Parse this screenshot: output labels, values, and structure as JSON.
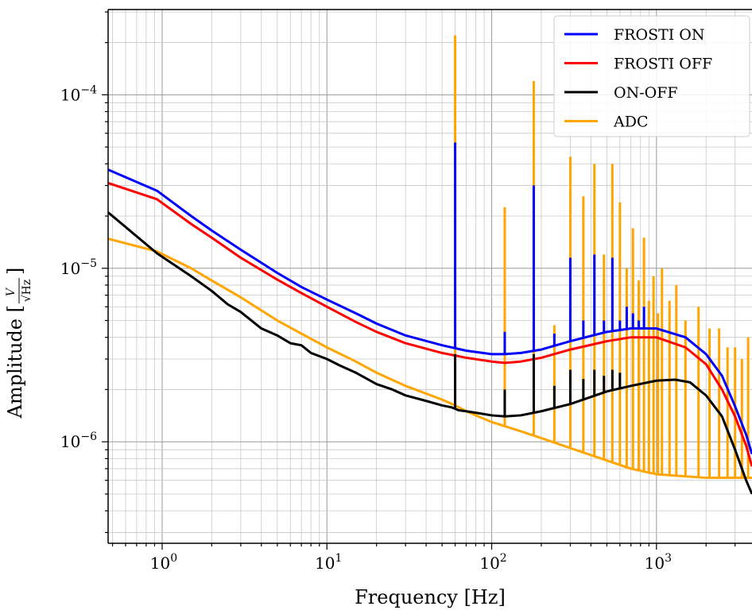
{
  "chart_data": {
    "type": "line",
    "title": "",
    "xlabel": "Frequency [Hz]",
    "ylabel_prefix": "Amplitude [",
    "ylabel_fraction_num": "V",
    "ylabel_fraction_den": "√Hz",
    "ylabel_suffix": "]",
    "x_scale": "log",
    "y_scale": "log",
    "xlim": [
      0.47,
      3800
    ],
    "ylim": [
      2.6e-07,
      0.00031
    ],
    "grid": "major and minor",
    "legend_position": "top-right",
    "x_ticks": [
      {
        "value": 1,
        "base": "10",
        "exp": "0"
      },
      {
        "value": 10,
        "base": "10",
        "exp": "1"
      },
      {
        "value": 100,
        "base": "10",
        "exp": "2"
      },
      {
        "value": 1000,
        "base": "10",
        "exp": "3"
      }
    ],
    "y_ticks": [
      {
        "value": 1e-06,
        "base": "10",
        "exp": "−6"
      },
      {
        "value": 1e-05,
        "base": "10",
        "exp": "−5"
      },
      {
        "value": 0.0001,
        "base": "10",
        "exp": "−4"
      }
    ],
    "series": [
      {
        "name": "FROSTI ON",
        "color": "#0000ff",
        "x": [
          0.47,
          0.93,
          1.5,
          2,
          3,
          5,
          7,
          10,
          15,
          20,
          30,
          50,
          70,
          100,
          120,
          150,
          200,
          300,
          500,
          700,
          1000,
          1500,
          2000,
          2500,
          3000,
          3500,
          3800
        ],
        "y": [
          3.7e-05,
          2.8e-05,
          2e-05,
          1.65e-05,
          1.28e-05,
          9.4e-06,
          7.8e-06,
          6.6e-06,
          5.5e-06,
          4.8e-06,
          4.1e-06,
          3.6e-06,
          3.35e-06,
          3.2e-06,
          3.2e-06,
          3.25e-06,
          3.4e-06,
          3.8e-06,
          4.3e-06,
          4.5e-06,
          4.5e-06,
          4e-06,
          3.2e-06,
          2.4e-06,
          1.6e-06,
          1.1e-06,
          8.5e-07
        ],
        "peaks": [
          [
            60,
            5.3e-05
          ],
          [
            120,
            4.3e-06
          ],
          [
            180,
            3e-05
          ],
          [
            240,
            4.2e-06
          ],
          [
            300,
            1.15e-05
          ],
          [
            360,
            5e-06
          ],
          [
            420,
            1.2e-05
          ],
          [
            480,
            5e-06
          ],
          [
            540,
            1.15e-05
          ],
          [
            600,
            5e-06
          ],
          [
            660,
            6e-06
          ],
          [
            720,
            5.5e-06
          ],
          [
            780,
            5e-06
          ],
          [
            840,
            6e-06
          ]
        ]
      },
      {
        "name": "FROSTI OFF",
        "color": "#ff0000",
        "x": [
          0.47,
          0.93,
          1.5,
          2,
          3,
          5,
          7,
          10,
          15,
          20,
          30,
          50,
          70,
          100,
          120,
          150,
          200,
          300,
          500,
          700,
          1000,
          1500,
          2000,
          2500,
          3000,
          3500,
          3800
        ],
        "y": [
          3.1e-05,
          2.5e-05,
          1.8e-05,
          1.5e-05,
          1.15e-05,
          8.6e-06,
          7.2e-06,
          6e-06,
          4.9e-06,
          4.3e-06,
          3.7e-06,
          3.25e-06,
          3.05e-06,
          2.9e-06,
          2.85e-06,
          2.9e-06,
          3.05e-06,
          3.4e-06,
          3.8e-06,
          4e-06,
          4e-06,
          3.5e-06,
          2.8e-06,
          2e-06,
          1.4e-06,
          9.5e-07,
          7.2e-07
        ],
        "peaks": []
      },
      {
        "name": "ON-OFF",
        "color": "#000000",
        "x": [
          0.47,
          0.93,
          1.5,
          2,
          2.5,
          3,
          4,
          5,
          6,
          7,
          8,
          10,
          12,
          15,
          20,
          25,
          30,
          40,
          50,
          57,
          60,
          63,
          70,
          80,
          100,
          120,
          150,
          200,
          300,
          500,
          700,
          1000,
          1300,
          1600,
          2000,
          2500,
          3000,
          3500,
          3800
        ],
        "y": [
          2.1e-05,
          1.22e-05,
          9e-06,
          7.4e-06,
          6.2e-06,
          5.6e-06,
          4.5e-06,
          4.1e-06,
          3.7e-06,
          3.6e-06,
          3.25e-06,
          3e-06,
          2.75e-06,
          2.5e-06,
          2.15e-06,
          2e-06,
          1.85e-06,
          1.72e-06,
          1.62e-06,
          1.58e-06,
          1.55e-06,
          1.52e-06,
          1.5e-06,
          1.47e-06,
          1.42e-06,
          1.4e-06,
          1.42e-06,
          1.5e-06,
          1.65e-06,
          1.95e-06,
          2.1e-06,
          2.25e-06,
          2.28e-06,
          2.2e-06,
          1.85e-06,
          1.4e-06,
          9e-07,
          6e-07,
          5e-07
        ],
        "peaks": [
          [
            60,
            3.2e-06
          ],
          [
            120,
            2e-06
          ],
          [
            180,
            3.2e-06
          ],
          [
            240,
            2.1e-06
          ],
          [
            300,
            2.6e-06
          ],
          [
            360,
            2.3e-06
          ],
          [
            420,
            2.6e-06
          ],
          [
            480,
            2.4e-06
          ],
          [
            540,
            2.6e-06
          ],
          [
            600,
            2.5e-06
          ]
        ]
      },
      {
        "name": "ADC",
        "color": "#ffa500",
        "x": [
          0.47,
          0.93,
          1.5,
          2,
          3,
          5,
          7,
          10,
          15,
          20,
          30,
          50,
          60,
          70,
          100,
          150,
          200,
          300,
          500,
          700,
          1000,
          2000,
          3000,
          3800
        ],
        "y": [
          1.48e-05,
          1.25e-05,
          1e-05,
          8.5e-06,
          6.8e-06,
          5e-06,
          4.2e-06,
          3.5e-06,
          2.9e-06,
          2.5e-06,
          2.1e-06,
          1.75e-06,
          1.62e-06,
          1.5e-06,
          1.3e-06,
          1.15e-06,
          1.05e-06,
          9.2e-07,
          7.8e-07,
          7e-07,
          6.5e-07,
          6.2e-07,
          6.2e-07,
          6.2e-07
        ],
        "peaks": [
          [
            60,
            0.00022
          ],
          [
            120,
            2.25e-05
          ],
          [
            180,
            0.00012
          ],
          [
            240,
            4.7e-06
          ],
          [
            300,
            4.4e-05
          ],
          [
            360,
            2.6e-05
          ],
          [
            420,
            4e-05
          ],
          [
            480,
            1.2e-05
          ],
          [
            540,
            4e-05
          ],
          [
            600,
            2.4e-05
          ],
          [
            660,
            1e-05
          ],
          [
            720,
            1.7e-05
          ],
          [
            780,
            8.5e-06
          ],
          [
            840,
            1.5e-05
          ],
          [
            900,
            6.5e-06
          ],
          [
            960,
            9e-06
          ],
          [
            1020,
            5.5e-06
          ],
          [
            1080,
            1e-05
          ],
          [
            1200,
            6.5e-06
          ],
          [
            1320,
            8e-06
          ],
          [
            1500,
            5e-06
          ],
          [
            1800,
            6e-06
          ],
          [
            2100,
            4.5e-06
          ],
          [
            2400,
            4.5e-06
          ],
          [
            2700,
            3.5e-06
          ],
          [
            3000,
            3.5e-06
          ],
          [
            3300,
            3e-06
          ],
          [
            3600,
            4e-06
          ]
        ]
      }
    ]
  }
}
